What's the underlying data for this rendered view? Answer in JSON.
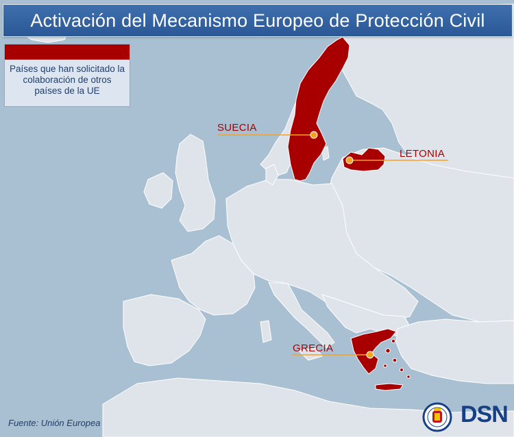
{
  "title": "Activación del Mecanismo Europeo de Protección Civil",
  "legend": {
    "swatch_color": "#a80000",
    "text": "Países que han solicitado la colaboración de otros países de la UE"
  },
  "countries": [
    {
      "name": "SUECIA",
      "highlighted": true
    },
    {
      "name": "LETONIA",
      "highlighted": true
    },
    {
      "name": "GRECIA",
      "highlighted": true
    }
  ],
  "colors": {
    "sea": "#a9bfd2",
    "land": "#dfe4ea",
    "highlight": "#a80000",
    "marker": "#f5a223",
    "title_bar": "#2f5d9e"
  },
  "source": "Fuente: Unión Europea",
  "logo": {
    "text": "DSN",
    "emblem_icon": "coat-of-arms-icon"
  }
}
